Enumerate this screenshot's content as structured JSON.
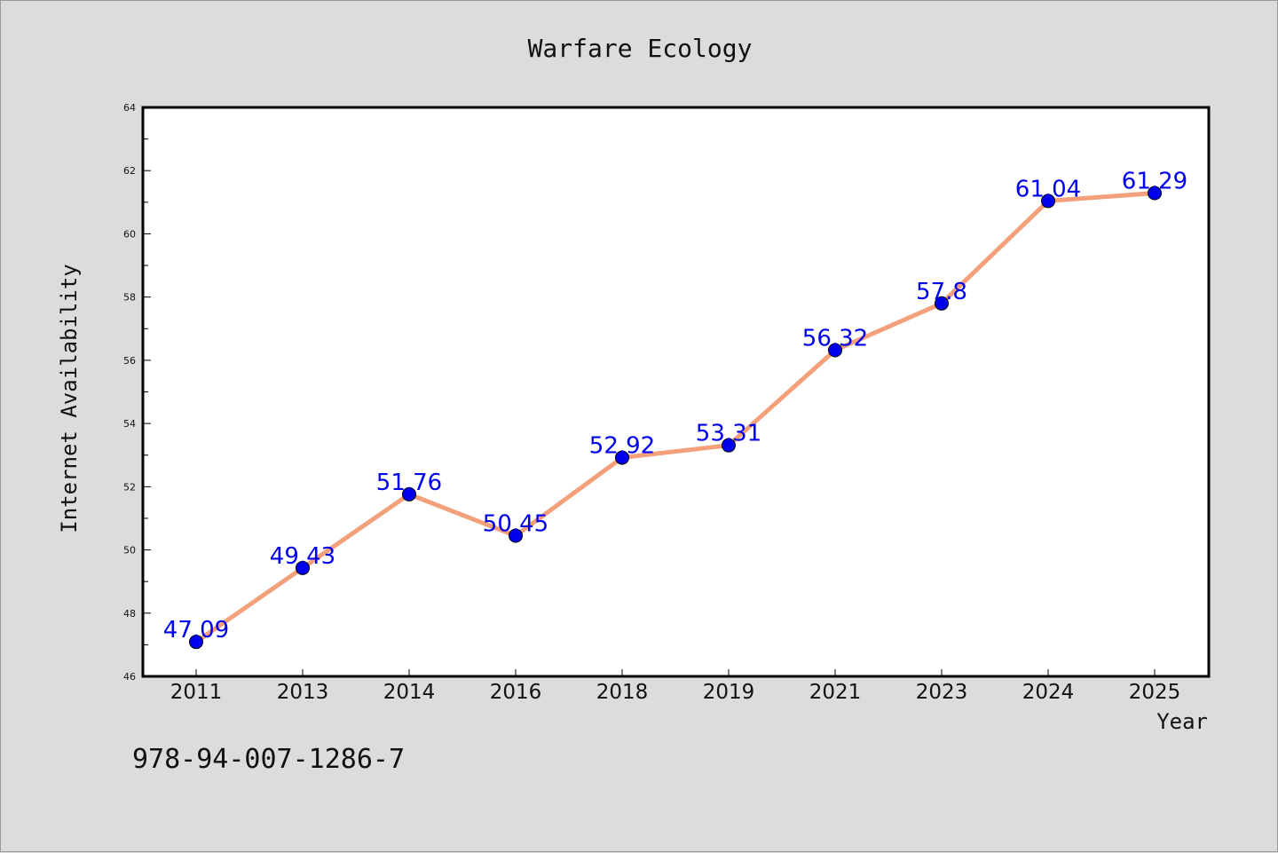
{
  "chart_data": {
    "type": "line",
    "title": "Warfare Ecology",
    "xlabel": "Year",
    "ylabel": "Internet Availability",
    "categories": [
      "2011",
      "2013",
      "2014",
      "2016",
      "2018",
      "2019",
      "2021",
      "2023",
      "2024",
      "2025"
    ],
    "series": [
      {
        "values": [
          47.09,
          49.43,
          51.76,
          50.45,
          52.92,
          53.31,
          56.32,
          57.8,
          61.04,
          61.29
        ],
        "labels": [
          "47.09",
          "49.43",
          "51.76",
          "50.45",
          "52.92",
          "53.31",
          "56.32",
          "57.8",
          "61.04",
          "61.29"
        ],
        "line_color": "#f4a07a",
        "marker_color": "#0000ee"
      }
    ],
    "ylim": [
      46,
      64
    ],
    "yticks": [
      "46",
      "48",
      "50",
      "52",
      "54",
      "56",
      "58",
      "60",
      "62",
      "64"
    ],
    "grid": false,
    "legend": "none"
  },
  "footer": {
    "isbn": "978-94-007-1286-7"
  }
}
